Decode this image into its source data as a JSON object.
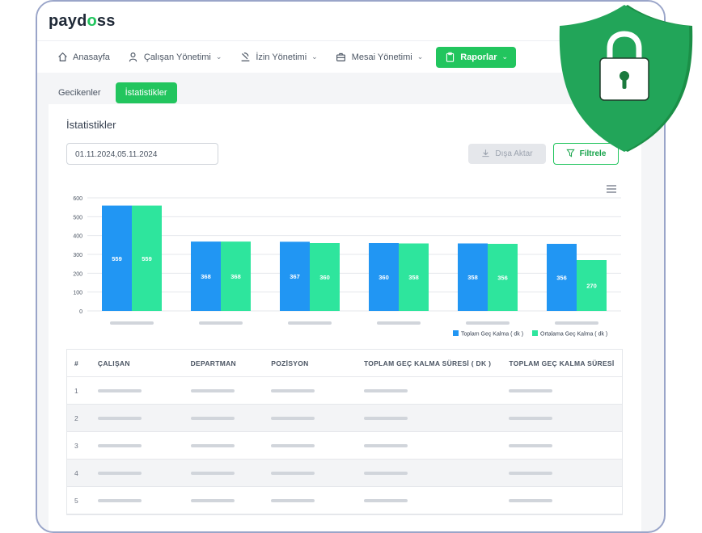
{
  "app": {
    "logo_prefix": "payd",
    "logo_mid": "o",
    "logo_suffix": "ss"
  },
  "nav": [
    {
      "label": "Anasayfa",
      "icon": "home-icon",
      "has_chevron": false,
      "active": false
    },
    {
      "label": "Çalışan Yönetimi",
      "icon": "user-icon",
      "has_chevron": true,
      "active": false
    },
    {
      "label": "İzin Yönetimi",
      "icon": "beach-icon",
      "has_chevron": true,
      "active": false
    },
    {
      "label": "Mesai Yönetimi",
      "icon": "briefcase-icon",
      "has_chevron": true,
      "active": false
    },
    {
      "label": "Raporlar",
      "icon": "clipboard-icon",
      "has_chevron": true,
      "active": true
    }
  ],
  "tabs": [
    {
      "label": "Gecikenler",
      "active": false
    },
    {
      "label": "İstatistikler",
      "active": true
    }
  ],
  "card": {
    "title": "İstatistikler",
    "date_value": "01.11.2024,05.11.2024",
    "export_label": "Dışa Aktar",
    "filter_label": "Filtrele"
  },
  "chart_data": {
    "type": "bar",
    "categories": [
      "",
      "",
      "",
      "",
      "",
      ""
    ],
    "series": [
      {
        "name": "Toplam Geç Kalma ( dk )",
        "color": "#2196f3",
        "values": [
          559,
          368,
          367,
          360,
          358,
          356
        ]
      },
      {
        "name": "Ortalama Geç Kalma ( dk )",
        "color": "#2ee59d",
        "values": [
          559,
          368,
          360,
          358,
          356,
          270
        ]
      }
    ],
    "ylim": [
      0,
      600
    ],
    "yticks": [
      0,
      100,
      200,
      300,
      400,
      500,
      600
    ],
    "grid": true,
    "legend_position": "bottom-right"
  },
  "table": {
    "headers": [
      "#",
      "ÇALIŞAN",
      "DEPARTMAN",
      "POZİSYON",
      "TOPLAM GEÇ KALMA SÜRESİ ( DK )",
      "TOPLAM GEÇ KALMA SÜRESİ"
    ],
    "row_numbers": [
      "1",
      "2",
      "3",
      "4",
      "5"
    ]
  },
  "colors": {
    "accent": "#22c55e",
    "shield": "#22a559"
  }
}
